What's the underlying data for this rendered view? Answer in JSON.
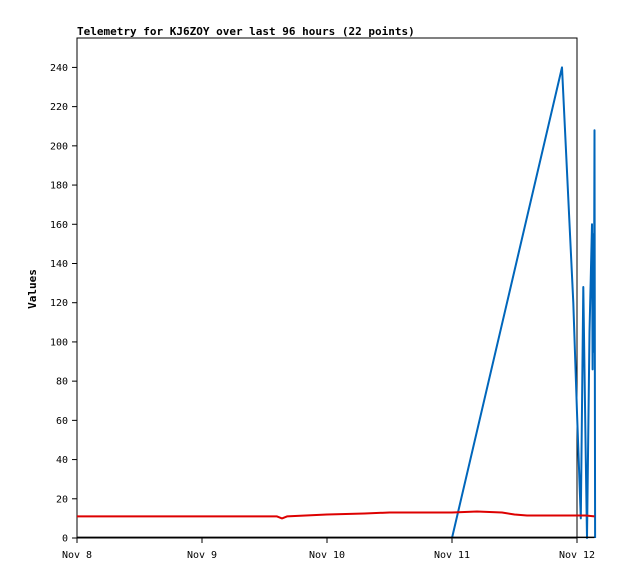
{
  "chart_data": {
    "type": "line",
    "title": "Telemetry for KJ6ZOY over last 96 hours (22 points)",
    "xlabel": "",
    "ylabel": "Values",
    "x_ticks": [
      "Nov 8",
      "Nov 9",
      "Nov 10",
      "Nov 11",
      "Nov 12"
    ],
    "xlim": [
      0,
      4
    ],
    "x_unit": "days from Nov 8",
    "y_ticks": [
      0,
      20,
      40,
      60,
      80,
      100,
      120,
      140,
      160,
      180,
      200,
      220,
      240
    ],
    "ylim": [
      0,
      255
    ],
    "grid": false,
    "legend": "none",
    "series": [
      {
        "color": "#0066bb",
        "points": [
          [
            3.0,
            0
          ],
          [
            3.88,
            240
          ],
          [
            3.97,
            120
          ],
          [
            4.0,
            64
          ],
          [
            4.03,
            10
          ],
          [
            4.05,
            128
          ],
          [
            4.07,
            40
          ],
          [
            4.08,
            0
          ],
          [
            4.1,
            105
          ],
          [
            4.12,
            160
          ],
          [
            4.125,
            86
          ],
          [
            4.13,
            155
          ],
          [
            4.135,
            95
          ],
          [
            4.14,
            208
          ],
          [
            4.145,
            0
          ]
        ]
      },
      {
        "color": "#dd0000",
        "points": [
          [
            0.0,
            11
          ],
          [
            1.5,
            11
          ],
          [
            1.6,
            11
          ],
          [
            1.64,
            10
          ],
          [
            1.68,
            11
          ],
          [
            2.0,
            12
          ],
          [
            2.3,
            12.5
          ],
          [
            2.5,
            13
          ],
          [
            2.85,
            13
          ],
          [
            3.0,
            13
          ],
          [
            3.2,
            13.5
          ],
          [
            3.4,
            13
          ],
          [
            3.5,
            12
          ],
          [
            3.6,
            11.5
          ],
          [
            4.07,
            11.5
          ],
          [
            4.14,
            11
          ]
        ]
      },
      {
        "color": "#000000",
        "points": [
          [
            0.0,
            0.3
          ],
          [
            4.14,
            0.3
          ]
        ]
      }
    ]
  }
}
